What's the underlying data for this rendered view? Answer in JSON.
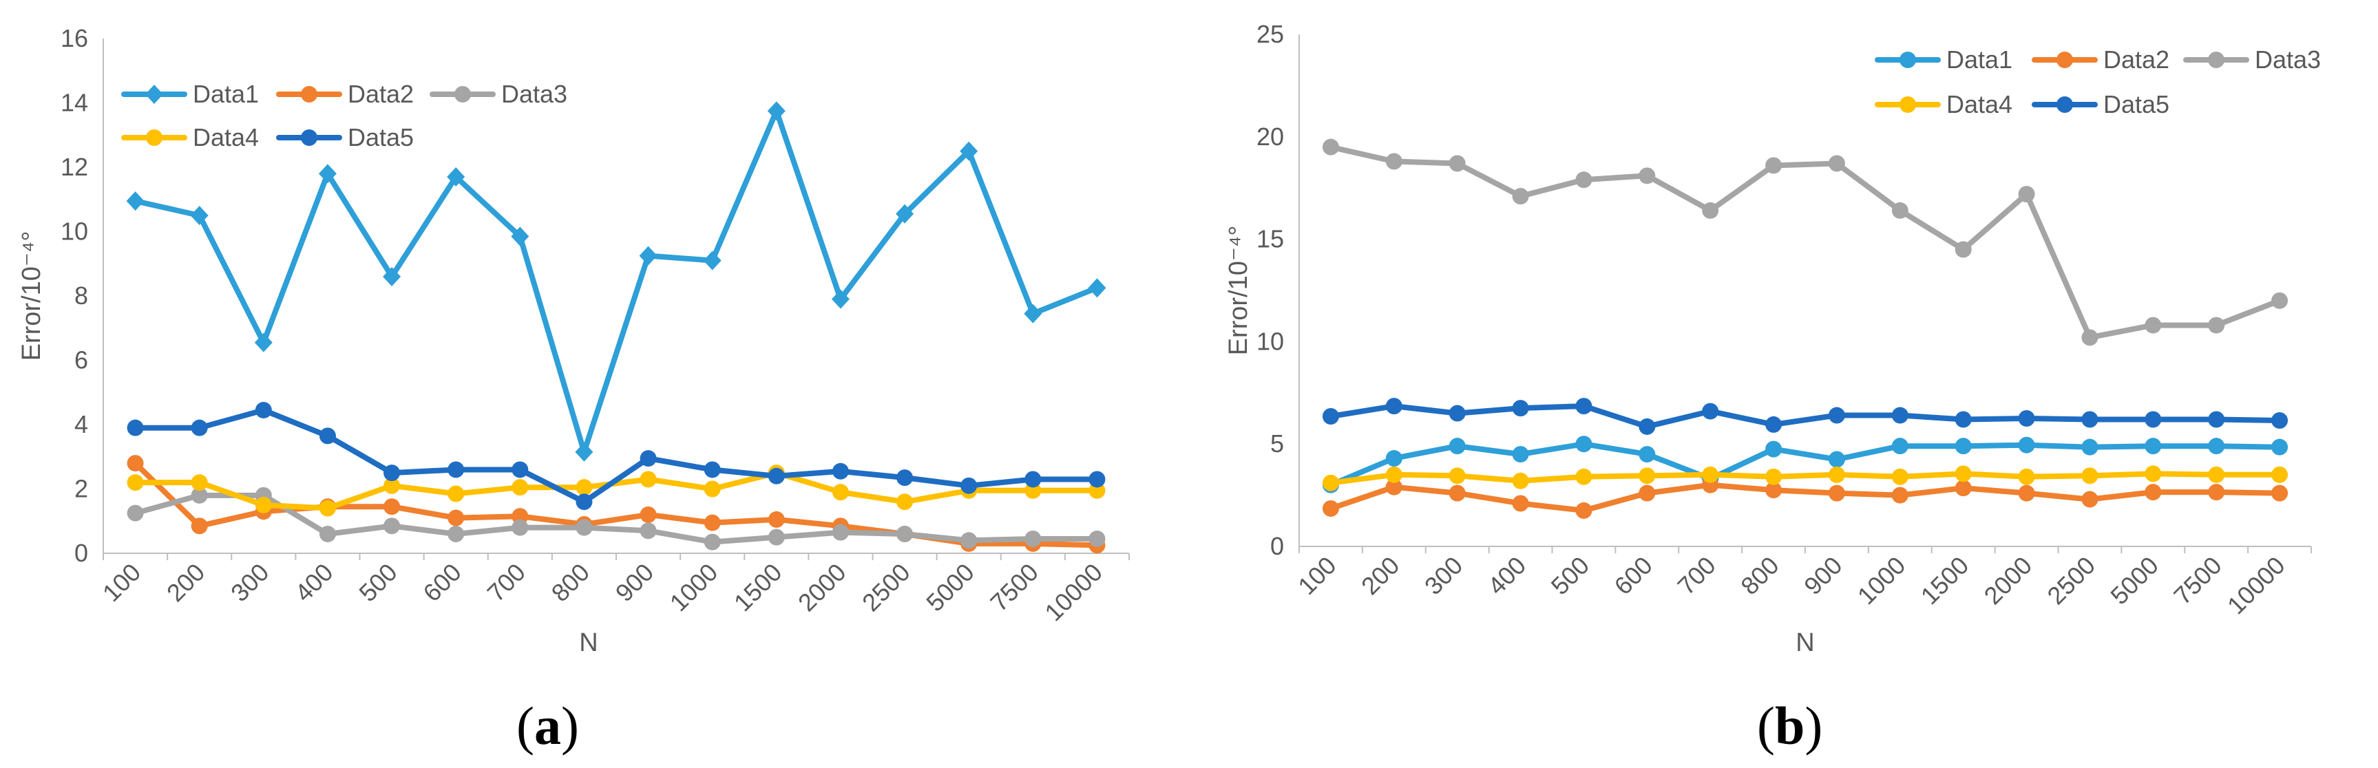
{
  "chart_data": [
    {
      "type": "line",
      "panel_label": "a",
      "title": "",
      "xlabel": "N",
      "ylabel": "Error/10⁻⁴°",
      "categories": [
        "100",
        "200",
        "300",
        "400",
        "500",
        "600",
        "700",
        "800",
        "900",
        "1000",
        "1500",
        "2000",
        "2500",
        "5000",
        "7500",
        "10000"
      ],
      "ylim": [
        0,
        16
      ],
      "yticks": [
        0,
        2,
        4,
        6,
        8,
        10,
        12,
        14,
        16
      ],
      "legend_position": "top-left",
      "series": [
        {
          "name": "Data1",
          "color": "#2E9FD8",
          "marker": "diamond",
          "values": [
            10.95,
            10.5,
            6.55,
            11.8,
            8.6,
            11.7,
            9.85,
            3.15,
            9.25,
            9.1,
            13.75,
            7.9,
            10.55,
            12.5,
            7.45,
            8.25
          ]
        },
        {
          "name": "Data2",
          "color": "#F07F2E",
          "marker": "circle",
          "values": [
            2.8,
            0.85,
            1.3,
            1.45,
            1.45,
            1.1,
            1.15,
            0.9,
            1.2,
            0.95,
            1.05,
            0.85,
            0.6,
            0.3,
            0.3,
            0.25
          ]
        },
        {
          "name": "Data3",
          "color": "#A5A5A5",
          "marker": "circle",
          "values": [
            1.25,
            1.8,
            1.8,
            0.6,
            0.85,
            0.6,
            0.8,
            0.8,
            0.7,
            0.35,
            0.5,
            0.65,
            0.6,
            0.4,
            0.45,
            0.45
          ]
        },
        {
          "name": "Data4",
          "color": "#FFC000",
          "marker": "circle",
          "values": [
            2.2,
            2.2,
            1.5,
            1.4,
            2.1,
            1.85,
            2.05,
            2.05,
            2.3,
            2.0,
            2.5,
            1.9,
            1.6,
            1.95,
            1.95,
            1.95
          ]
        },
        {
          "name": "Data5",
          "color": "#1F6DC2",
          "marker": "circle",
          "values": [
            3.9,
            3.9,
            4.45,
            3.65,
            2.5,
            2.6,
            2.6,
            1.6,
            2.95,
            2.6,
            2.4,
            2.55,
            2.35,
            2.1,
            2.3,
            2.3
          ]
        }
      ]
    },
    {
      "type": "line",
      "panel_label": "b",
      "title": "",
      "xlabel": "N",
      "ylabel": "Error/10⁻⁴°",
      "categories": [
        "100",
        "200",
        "300",
        "400",
        "500",
        "600",
        "700",
        "800",
        "900",
        "1000",
        "1500",
        "2000",
        "2500",
        "5000",
        "7500",
        "10000"
      ],
      "ylim": [
        0,
        25
      ],
      "yticks": [
        0,
        5,
        10,
        15,
        20,
        25
      ],
      "legend_position": "top-right",
      "series": [
        {
          "name": "Data1",
          "color": "#2E9FD8",
          "marker": "circle",
          "values": [
            3.0,
            4.3,
            4.9,
            4.5,
            5.0,
            4.5,
            3.3,
            4.75,
            4.25,
            4.9,
            4.9,
            4.95,
            4.85,
            4.9,
            4.9,
            4.85
          ]
        },
        {
          "name": "Data2",
          "color": "#F07F2E",
          "marker": "circle",
          "values": [
            1.85,
            2.9,
            2.6,
            2.1,
            1.75,
            2.6,
            3.0,
            2.75,
            2.6,
            2.5,
            2.85,
            2.6,
            2.3,
            2.65,
            2.65,
            2.6
          ]
        },
        {
          "name": "Data3",
          "color": "#A5A5A5",
          "marker": "circle",
          "values": [
            19.5,
            18.8,
            18.7,
            17.1,
            17.9,
            18.1,
            16.4,
            18.6,
            18.7,
            16.4,
            14.5,
            17.2,
            10.2,
            10.8,
            10.8,
            12.0
          ]
        },
        {
          "name": "Data4",
          "color": "#FFC000",
          "marker": "circle",
          "values": [
            3.1,
            3.5,
            3.45,
            3.2,
            3.4,
            3.45,
            3.5,
            3.4,
            3.5,
            3.4,
            3.55,
            3.4,
            3.45,
            3.55,
            3.5,
            3.5
          ]
        },
        {
          "name": "Data5",
          "color": "#1F6DC2",
          "marker": "circle",
          "values": [
            6.35,
            6.85,
            6.5,
            6.75,
            6.85,
            5.85,
            6.6,
            5.95,
            6.4,
            6.4,
            6.2,
            6.25,
            6.2,
            6.2,
            6.2,
            6.15
          ]
        }
      ]
    }
  ]
}
